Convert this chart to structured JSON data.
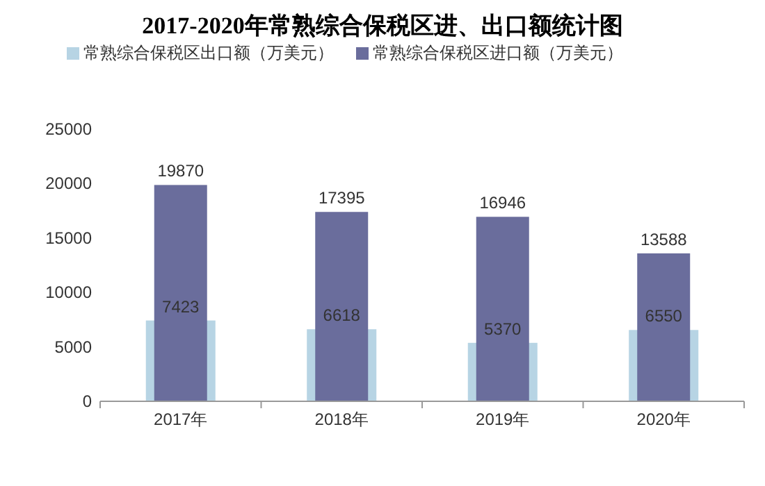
{
  "chart_data": {
    "type": "bar",
    "title": "2017-2020年常熟综合保税区进、出口额统计图",
    "categories": [
      "2017年",
      "2018年",
      "2019年",
      "2020年"
    ],
    "series": [
      {
        "name": "常熟综合保税区出口额（万美元）",
        "color": "#b7d4e4",
        "values": [
          7423,
          6618,
          5370,
          6550
        ]
      },
      {
        "name": "常熟综合保税区进口额（万美元）",
        "color": "#6a6d9c",
        "values": [
          19870,
          17395,
          16946,
          13588
        ]
      }
    ],
    "ylim": [
      0,
      25000
    ],
    "yticks": [
      0,
      5000,
      10000,
      15000,
      20000,
      25000
    ],
    "data_labels": true,
    "legend": "top"
  }
}
